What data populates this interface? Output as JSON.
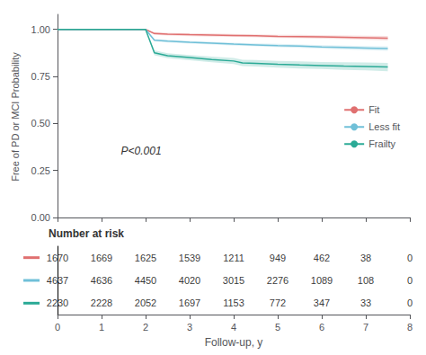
{
  "chart_data": {
    "type": "line",
    "ylabel": "Free of PD or MCI Probability",
    "xlabel": "Follow-up, y",
    "xlim": [
      0,
      8
    ],
    "ylim": [
      -0.01,
      1.08
    ],
    "xticks": [
      0,
      1,
      2,
      3,
      4,
      5,
      6,
      7,
      8
    ],
    "yticks": [
      {
        "value": 0.0,
        "label": "0.00"
      },
      {
        "value": 0.25,
        "label": "0.25"
      },
      {
        "value": 0.5,
        "label": "0.50"
      },
      {
        "value": 0.75,
        "label": "0.75"
      },
      {
        "value": 1.0,
        "label": "1.00"
      }
    ],
    "grid": false,
    "legend": "right",
    "annotations": [
      "P<0.001"
    ],
    "risk_table_title": "Number at risk",
    "series": [
      {
        "name": "Fit",
        "color": "#E07070",
        "x": [
          0,
          0.5,
          1.0,
          1.5,
          2.0,
          2.2,
          2.5,
          3.0,
          3.5,
          4.0,
          4.5,
          5.0,
          5.5,
          6.0,
          6.5,
          7.0,
          7.5
        ],
        "values": [
          1.0,
          1.0,
          1.0,
          1.0,
          1.0,
          0.978,
          0.975,
          0.972,
          0.97,
          0.968,
          0.966,
          0.963,
          0.962,
          0.96,
          0.958,
          0.956,
          0.953
        ],
        "ci_low": [
          1.0,
          1.0,
          1.0,
          1.0,
          1.0,
          0.971,
          0.968,
          0.964,
          0.962,
          0.96,
          0.958,
          0.955,
          0.953,
          0.951,
          0.948,
          0.945,
          0.941
        ],
        "ci_high": [
          1.0,
          1.0,
          1.0,
          1.0,
          1.0,
          0.985,
          0.982,
          0.98,
          0.978,
          0.976,
          0.974,
          0.971,
          0.971,
          0.969,
          0.968,
          0.967,
          0.965
        ],
        "at_risk": [
          1670,
          1669,
          1625,
          1539,
          1211,
          949,
          462,
          38,
          0
        ]
      },
      {
        "name": "Less fit",
        "color": "#70C0D8",
        "x": [
          0,
          0.5,
          1.0,
          1.5,
          2.0,
          2.2,
          2.5,
          3.0,
          3.5,
          4.0,
          4.5,
          5.0,
          5.5,
          6.0,
          6.5,
          7.0,
          7.5
        ],
        "values": [
          1.0,
          1.0,
          1.0,
          1.0,
          1.0,
          0.943,
          0.938,
          0.932,
          0.927,
          0.922,
          0.918,
          0.914,
          0.911,
          0.907,
          0.904,
          0.901,
          0.898
        ],
        "ci_low": [
          1.0,
          1.0,
          1.0,
          1.0,
          1.0,
          0.937,
          0.931,
          0.925,
          0.92,
          0.914,
          0.91,
          0.905,
          0.902,
          0.898,
          0.894,
          0.89,
          0.886
        ],
        "ci_high": [
          1.0,
          1.0,
          1.0,
          1.0,
          1.0,
          0.949,
          0.945,
          0.939,
          0.934,
          0.93,
          0.926,
          0.923,
          0.92,
          0.916,
          0.914,
          0.912,
          0.91
        ],
        "at_risk": [
          4637,
          4636,
          4450,
          4020,
          3015,
          2276,
          1089,
          108,
          0
        ]
      },
      {
        "name": "Frailty",
        "color": "#2BAA96",
        "x": [
          0,
          0.5,
          1.0,
          1.5,
          2.0,
          2.2,
          2.5,
          3.0,
          3.5,
          4.0,
          4.2,
          4.5,
          5.0,
          5.5,
          6.0,
          6.5,
          7.0,
          7.5
        ],
        "values": [
          1.0,
          1.0,
          1.0,
          1.0,
          1.0,
          0.876,
          0.86,
          0.85,
          0.84,
          0.832,
          0.822,
          0.82,
          0.815,
          0.811,
          0.808,
          0.805,
          0.803,
          0.8
        ],
        "ci_low": [
          1.0,
          1.0,
          1.0,
          1.0,
          1.0,
          0.863,
          0.847,
          0.836,
          0.825,
          0.816,
          0.805,
          0.803,
          0.797,
          0.792,
          0.789,
          0.785,
          0.782,
          0.778
        ],
        "ci_high": [
          1.0,
          1.0,
          1.0,
          1.0,
          1.0,
          0.889,
          0.873,
          0.864,
          0.855,
          0.848,
          0.839,
          0.837,
          0.833,
          0.83,
          0.827,
          0.825,
          0.824,
          0.822
        ],
        "at_risk": [
          2230,
          2228,
          2052,
          1697,
          1153,
          772,
          347,
          33,
          0
        ]
      }
    ]
  }
}
